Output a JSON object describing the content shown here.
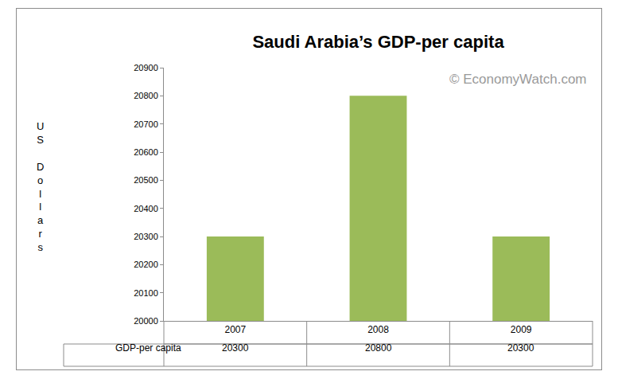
{
  "chart_data": {
    "type": "bar",
    "title": "Saudi Arabia’s GDP-per capita",
    "y_label": "US Dollars",
    "annotations": [
      "© EconomyWatch.com"
    ],
    "categories": [
      "2007",
      "2008",
      "2009"
    ],
    "series": [
      {
        "name": "GDP-per capita",
        "color": "#9bbb59",
        "values": [
          20300,
          20800,
          20300
        ]
      }
    ],
    "ylim": [
      20000,
      20900
    ],
    "yticks": [
      20000,
      20100,
      20200,
      20300,
      20400,
      20500,
      20600,
      20700,
      20800,
      20900
    ],
    "grid": false,
    "data_labels": true
  }
}
